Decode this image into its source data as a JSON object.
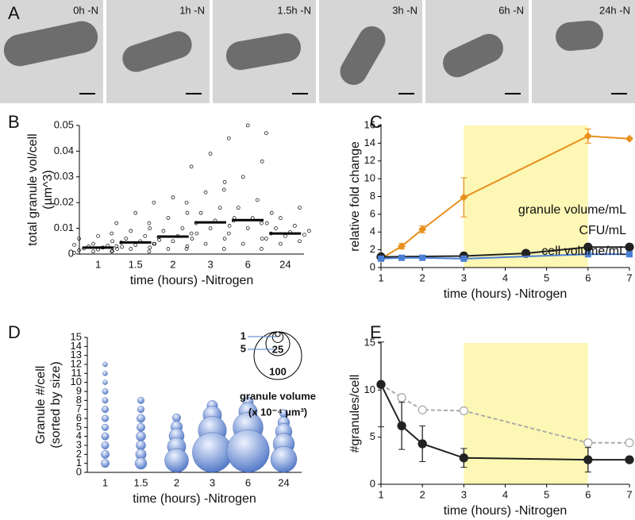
{
  "panel_labels": [
    "A",
    "B",
    "C",
    "D",
    "E"
  ],
  "panel_a": {
    "labels": [
      "0h -N",
      "1h -N",
      "1.5h -N",
      "3h -N",
      "6h -N",
      "24h -N"
    ]
  },
  "chart_data": [
    {
      "type": "strip",
      "ylabel": [
        "total granule vol/cell",
        "(µm^3)"
      ],
      "xlabel": "time (hours) -Nitrogen",
      "categories": [
        "1",
        "1.5",
        "2",
        "3",
        "6",
        "24"
      ],
      "values": [
        0.0025,
        0.0045,
        0.0068,
        0.0123,
        0.0132,
        0.008
      ],
      "points": [
        [
          0.0005,
          0.001,
          0.0012,
          0.0015,
          0.0018,
          0.002,
          0.0022,
          0.0025,
          0.0028,
          0.003,
          0.0033,
          0.0036,
          0.004,
          0.005,
          0.006,
          0.007
        ],
        [
          0.001,
          0.002,
          0.0025,
          0.003,
          0.0035,
          0.004,
          0.0045,
          0.005,
          0.0055,
          0.006,
          0.007,
          0.008,
          0.009,
          0.01,
          0.012,
          0.016
        ],
        [
          0.001,
          0.002,
          0.003,
          0.004,
          0.005,
          0.006,
          0.0065,
          0.007,
          0.008,
          0.009,
          0.01,
          0.012,
          0.014,
          0.016,
          0.02,
          0.022
        ],
        [
          0.002,
          0.004,
          0.006,
          0.008,
          0.01,
          0.011,
          0.012,
          0.013,
          0.014,
          0.016,
          0.018,
          0.02,
          0.024,
          0.028,
          0.034,
          0.039
        ],
        [
          0.002,
          0.004,
          0.006,
          0.008,
          0.01,
          0.012,
          0.013,
          0.014,
          0.016,
          0.018,
          0.021,
          0.025,
          0.03,
          0.036,
          0.045,
          0.05
        ],
        [
          0.002,
          0.004,
          0.005,
          0.006,
          0.007,
          0.0075,
          0.008,
          0.0085,
          0.009,
          0.01,
          0.011,
          0.012,
          0.014,
          0.018,
          0.047
        ]
      ],
      "color": "#000000",
      "ylim": [
        0,
        0.05
      ],
      "yticks": [
        0,
        0.01,
        0.02,
        0.03,
        0.04,
        0.05
      ]
    },
    {
      "type": "line",
      "ylabel": [
        "relative fold change"
      ],
      "xlabel": "time (hours) -Nitrogen",
      "xlim": [
        1,
        7
      ],
      "xticks": [
        1,
        2,
        3,
        4,
        5,
        6,
        7
      ],
      "ylim": [
        0,
        16
      ],
      "yticks": [
        0,
        2,
        4,
        6,
        8,
        10,
        12,
        14,
        16
      ],
      "highlight": [
        3,
        6
      ],
      "highlight_color": "#fcf7b4",
      "series": [
        {
          "name": "granule volume/mL",
          "color": "#e8901e",
          "marker": "diamond",
          "x": [
            1,
            1.5,
            2,
            3,
            6,
            7
          ],
          "values": [
            1,
            2.4,
            4.3,
            7.9,
            14.8,
            14.5
          ],
          "errors": [
            0.2,
            0.3,
            0.4,
            2.2,
            0.8,
            null
          ]
        },
        {
          "name": "CFU/mL",
          "color": "#222222",
          "marker": "circle",
          "x": [
            1,
            3,
            4.5,
            6,
            7
          ],
          "values": [
            1.2,
            1.3,
            1.6,
            2.3,
            2.3
          ]
        },
        {
          "name": "cell volume/mL",
          "color": "#4a7fd6",
          "marker": "square",
          "x": [
            1,
            1.5,
            2,
            3,
            6,
            7
          ],
          "values": [
            1,
            1.1,
            1.1,
            1,
            1.5,
            1.5
          ]
        }
      ]
    },
    {
      "type": "bubble",
      "ylabel": [
        "Granule #/cell",
        "(sorted by size)"
      ],
      "xlabel": "time (hours) -Nitrogen",
      "categories": [
        "1",
        "1.5",
        "2",
        "3",
        "6",
        "24"
      ],
      "sizes": [
        [
          3,
          3,
          2.5,
          2.5,
          2,
          2,
          2,
          1.5,
          1.5,
          1,
          1,
          1
        ],
        [
          6,
          5,
          4,
          4,
          3,
          3,
          2,
          2
        ],
        [
          25,
          15,
          10,
          6,
          3
        ],
        [
          70,
          35,
          15,
          5
        ],
        [
          80,
          40,
          15,
          5
        ],
        [
          30,
          20,
          12,
          6,
          3
        ]
      ],
      "color": "#4a72c4",
      "ylim": [
        0,
        15
      ],
      "yticks": [
        0,
        1,
        2,
        3,
        4,
        5,
        6,
        7,
        8,
        9,
        10,
        11,
        12,
        13,
        14,
        15
      ],
      "legend_sizes": [
        1,
        5,
        25,
        100
      ],
      "legend_title": [
        "granule volume",
        "(x 10⁻⁴ µm³)"
      ],
      "legend_color": "#4a7cc9"
    },
    {
      "type": "line",
      "ylabel": [
        "#granules/cell"
      ],
      "xlabel": "time (hours) -Nitrogen",
      "xlim": [
        1,
        7
      ],
      "xticks": [
        1,
        2,
        3,
        4,
        5,
        6,
        7
      ],
      "ylim": [
        0,
        15
      ],
      "yticks": [
        0,
        5,
        10,
        15
      ],
      "highlight": [
        3,
        6
      ],
      "highlight_color": "#fcf7b4",
      "series": [
        {
          "color": "#aaaaaa",
          "marker": "open-circle",
          "dash": true,
          "x": [
            1,
            1.5,
            2,
            3,
            6,
            7
          ],
          "values": [
            10.6,
            9.2,
            7.9,
            7.8,
            4.4,
            4.4
          ]
        },
        {
          "color": "#222222",
          "marker": "circle",
          "x": [
            1,
            1.5,
            2,
            3,
            6,
            7
          ],
          "values": [
            10.6,
            6.2,
            4.3,
            2.8,
            2.6,
            2.6
          ],
          "errors": [
            4.5,
            2.5,
            1.9,
            1,
            1.3,
            null
          ]
        }
      ]
    }
  ]
}
